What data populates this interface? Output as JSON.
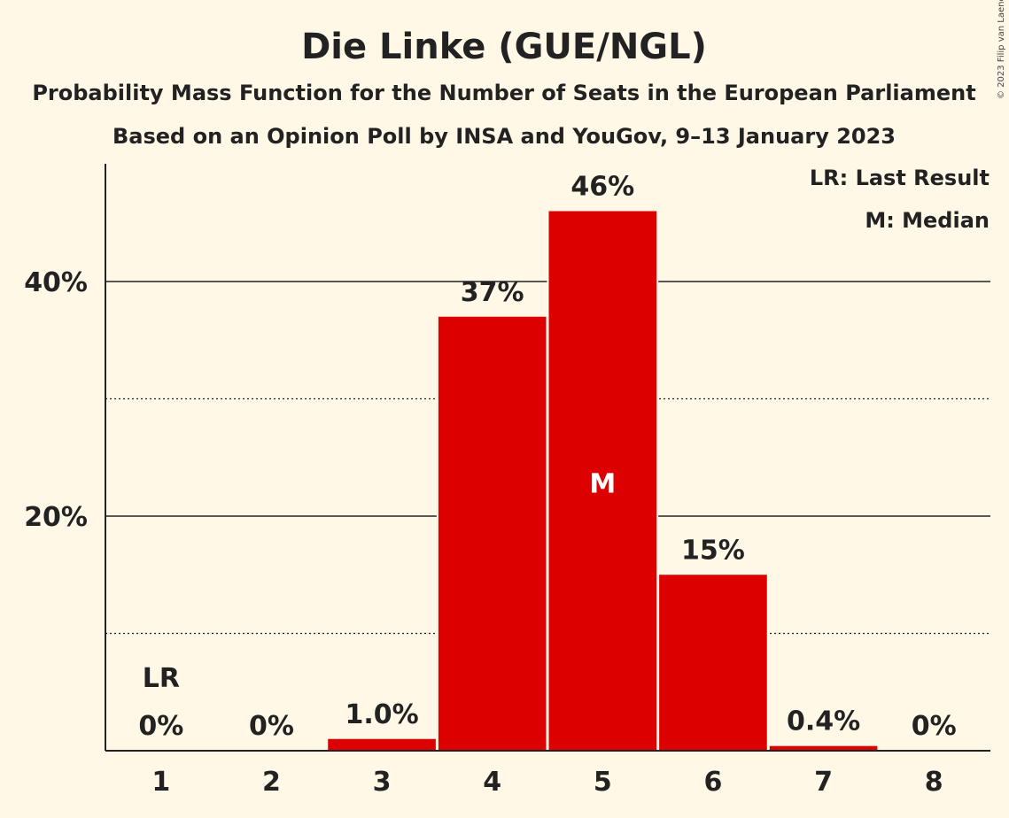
{
  "colors": {
    "background": "#fff8e6",
    "bar": "#dd0000",
    "text": "#222222"
  },
  "copyright": "© 2023 Filip van Laenen",
  "chart_data": {
    "type": "bar",
    "title": "Die Linke (GUE/NGL)",
    "subtitle": "Probability Mass Function for the Number of Seats in the European Parliament",
    "subtitle2": "Based on an Opinion Poll by INSA and YouGov, 9–13 January 2023",
    "xlabel": "",
    "ylabel": "",
    "categories": [
      "1",
      "2",
      "3",
      "4",
      "5",
      "6",
      "7",
      "8"
    ],
    "values": [
      0,
      0,
      1.0,
      37,
      46,
      15,
      0.4,
      0
    ],
    "data_labels": [
      "0%",
      "0%",
      "1.0%",
      "37%",
      "46%",
      "15%",
      "0.4%",
      "0%"
    ],
    "ylim": [
      0,
      50
    ],
    "yticks": [
      {
        "value": 20,
        "label": "20%"
      },
      {
        "value": 40,
        "label": "40%"
      }
    ],
    "minor_gridlines": [
      10,
      30
    ],
    "last_result": {
      "category": "1",
      "label": "LR"
    },
    "median": {
      "category": "5",
      "label": "M"
    },
    "legend": {
      "position": "top-right",
      "entries": [
        "LR: Last Result",
        "M: Median"
      ]
    }
  }
}
